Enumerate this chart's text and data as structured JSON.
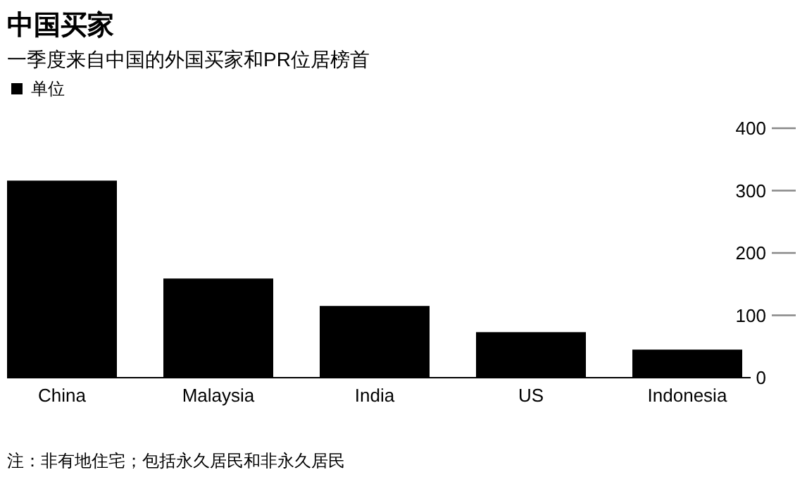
{
  "chart_data": {
    "type": "bar",
    "title": "中国买家",
    "subtitle": "一季度来自中国的外国买家和PR位居榜首",
    "categories": [
      "China",
      "Malaysia",
      "India",
      "US",
      "Indonesia"
    ],
    "series": [
      {
        "name": "单位",
        "color": "#000000",
        "values": [
          316,
          159,
          115,
          73,
          45
        ]
      }
    ],
    "ylim": [
      0,
      400
    ],
    "yticks": [
      0,
      100,
      200,
      300,
      400
    ],
    "legend": "top left",
    "annotations": [
      "注：非有地住宅；包括永久居民和非永久居民"
    ]
  }
}
